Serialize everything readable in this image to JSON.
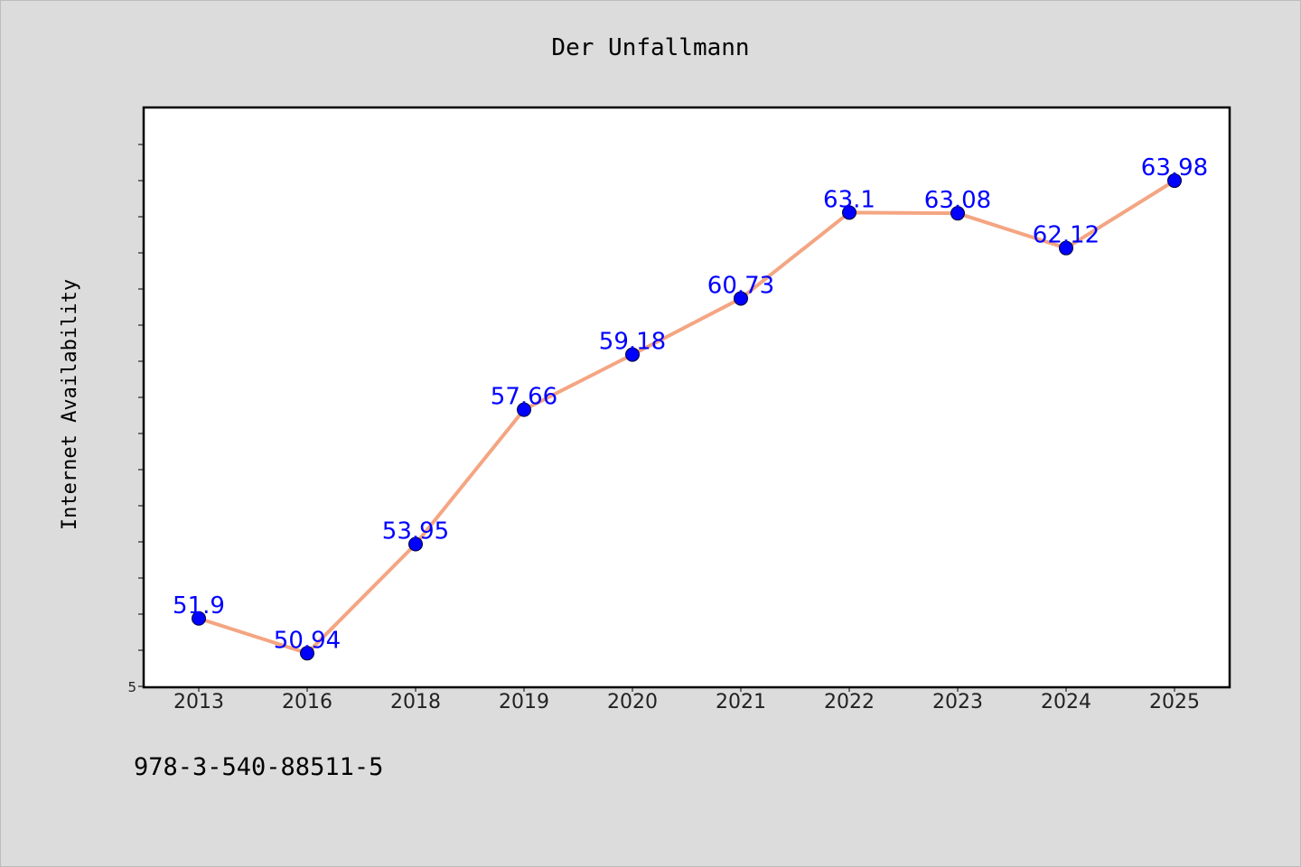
{
  "chart_data": {
    "type": "line",
    "title": "Der Unfallmann",
    "xlabel": "",
    "ylabel": "Internet Availability",
    "categories": [
      "2013",
      "2016",
      "2018",
      "2019",
      "2020",
      "2021",
      "2022",
      "2023",
      "2024",
      "2025"
    ],
    "series": [
      {
        "values": [
          51.9,
          50.94,
          53.95,
          57.66,
          59.18,
          60.73,
          63.1,
          63.08,
          62.12,
          63.98
        ]
      }
    ],
    "data_labels": [
      "51.9",
      "50.94",
      "53.95",
      "57.66",
      "59.18",
      "60.73",
      "63.1",
      "63.08",
      "62.12",
      "63.98"
    ],
    "ylim": [
      50.0,
      66.0
    ],
    "ytick_label": "5",
    "grid": false,
    "legend": "none",
    "line_color": "#f4a582",
    "marker_color": "#0000ff",
    "label_color": "#0000ff"
  },
  "footnote": "978-3-540-88511-5"
}
